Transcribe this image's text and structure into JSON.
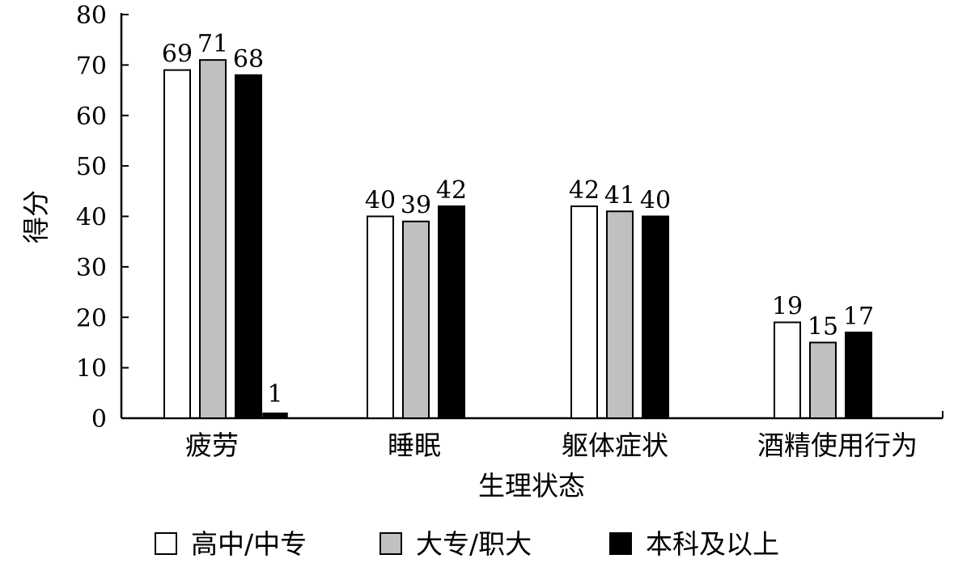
{
  "chart_data": {
    "type": "bar",
    "xlabel": "生理状态",
    "ylabel": "得分",
    "ylim": [
      0,
      80
    ],
    "yticks": [
      0,
      10,
      20,
      30,
      40,
      50,
      60,
      70,
      80
    ],
    "categories": [
      "疲劳",
      "睡眠",
      "躯体症状",
      "酒精使用行为"
    ],
    "series": [
      {
        "name": "高中/中专",
        "color": "#ffffff",
        "values": [
          69,
          40,
          42,
          19
        ]
      },
      {
        "name": "大专/职大",
        "color": "#c0c0c0",
        "values": [
          71,
          39,
          41,
          15
        ]
      },
      {
        "name": "本科及以上",
        "color": "#000000",
        "values": [
          68,
          42,
          40,
          17
        ]
      }
    ],
    "extra_bar": {
      "category": "疲劳",
      "value": 1,
      "label": "1",
      "color": "#000000"
    },
    "grid": false,
    "legend_position": "bottom"
  }
}
